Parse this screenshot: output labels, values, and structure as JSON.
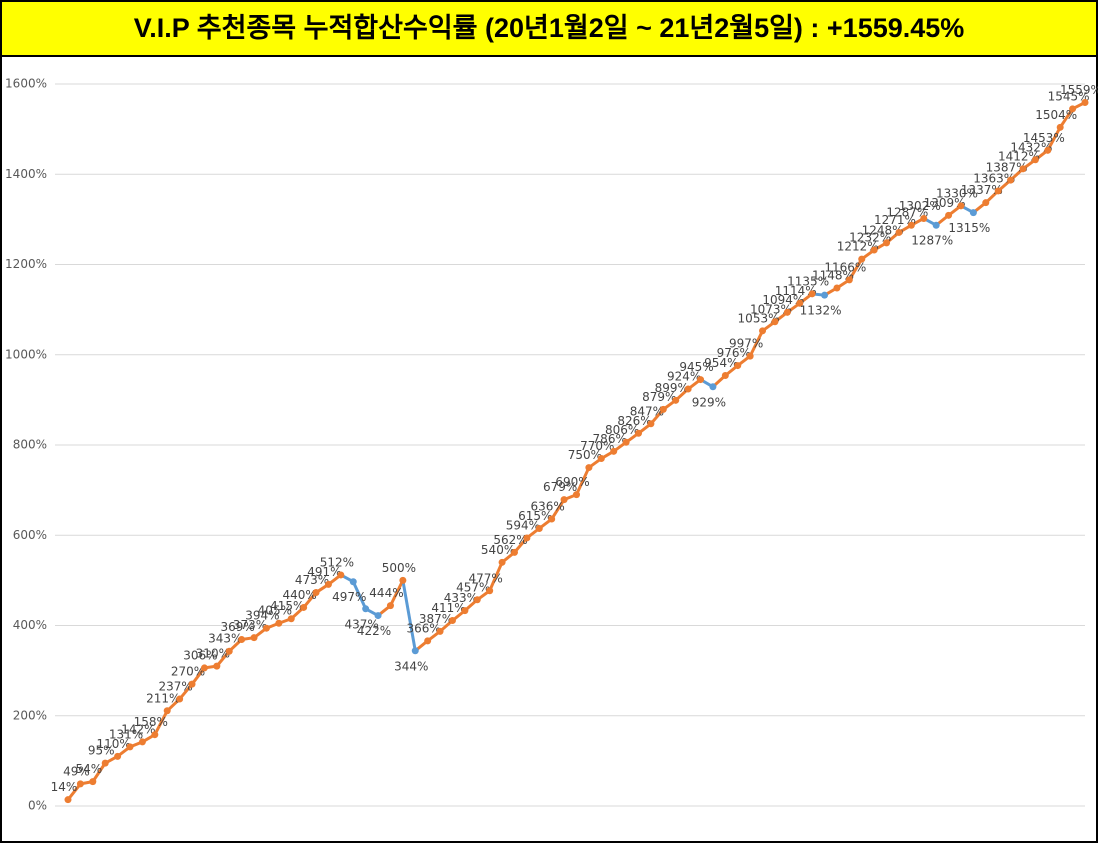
{
  "chart_data": {
    "type": "line",
    "title": "V.I.P 추천종목 누적합산수익률 (20년1월2일 ~ 21년2월5일) : +1559.45%",
    "values": [
      14,
      49,
      54,
      95,
      110,
      131,
      142,
      158,
      211,
      237,
      270,
      306,
      310,
      343,
      369,
      373,
      394,
      405,
      415,
      440,
      473,
      491,
      512,
      497,
      437,
      422,
      444,
      500,
      344,
      366,
      387,
      411,
      433,
      457,
      477,
      540,
      562,
      594,
      615,
      636,
      679,
      690,
      750,
      770,
      786,
      806,
      826,
      847,
      879,
      899,
      924,
      945,
      929,
      954,
      976,
      997,
      1053,
      1073,
      1094,
      1114,
      1135,
      1132,
      1148,
      1166,
      1212,
      1232,
      1248,
      1271,
      1287,
      1302,
      1287,
      1309,
      1330,
      1315,
      1337,
      1363,
      1387,
      1412,
      1432,
      1453,
      1504,
      1545,
      1559
    ],
    "value_labels": [
      "14%",
      "49%",
      "54%",
      "95%",
      "110%",
      "131%",
      "142%",
      "158%",
      "211%",
      "237%",
      "270%",
      "306%",
      "310%",
      "343%",
      "369%",
      "373%",
      "394%",
      "405%",
      "415%",
      "440%",
      "473%",
      "491%",
      "512%",
      "497%",
      "437%",
      "422%",
      "444%",
      "500%",
      "344%",
      "366%",
      "387%",
      "411%",
      "433%",
      "457%",
      "477%",
      "540%",
      "562%",
      "594%",
      "615%",
      "636%",
      "679%",
      "690%",
      "750%",
      "770%",
      "786%",
      "806%",
      "826%",
      "847%",
      "879%",
      "899%",
      "924%",
      "945%",
      "929%",
      "954%",
      "976%",
      "997%",
      "1053%",
      "1073%",
      "1094%",
      "1114%",
      "1135%",
      "1132%",
      "1148%",
      "1166%",
      "1212%",
      "1232%",
      "1248%",
      "1271%",
      "1287%",
      "1302%",
      "1287%",
      "1309%",
      "1330%",
      "1315%",
      "1337%",
      "1363%",
      "1387%",
      "1412%",
      "1432%",
      "1453%",
      "1504%",
      "1545%",
      "1559%"
    ],
    "color": "#ed7d31",
    "down_color": "#5b9bd5",
    "ylim": [
      0,
      1600
    ],
    "yticks": [
      {
        "value": 0,
        "label": "0%"
      },
      {
        "value": 200,
        "label": "200%"
      },
      {
        "value": 400,
        "label": "400%"
      },
      {
        "value": 600,
        "label": "600%"
      },
      {
        "value": 800,
        "label": "800%"
      },
      {
        "value": 1000,
        "label": "1000%"
      },
      {
        "value": 1200,
        "label": "1200%"
      },
      {
        "value": 1400,
        "label": "1400%"
      },
      {
        "value": 1600,
        "label": "1600%"
      }
    ],
    "grid": true
  }
}
